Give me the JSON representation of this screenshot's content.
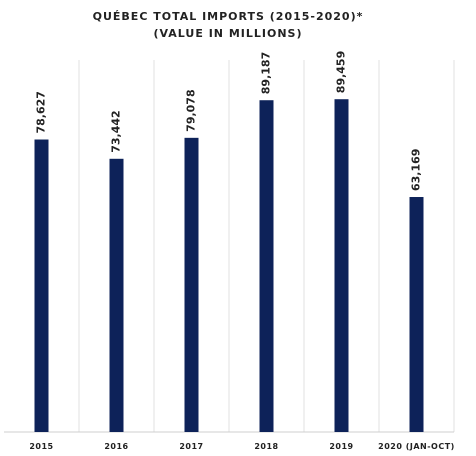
{
  "chart_data": {
    "type": "bar",
    "title": "QUÉBEC TOTAL IMPORTS (2015-2020)*",
    "subtitle": "(VALUE IN MILLIONS)",
    "categories": [
      "2015",
      "2016",
      "2017",
      "2018",
      "2019",
      "2020 (JAN-OCT)"
    ],
    "values": [
      78627,
      73442,
      79078,
      89187,
      89459,
      63169
    ],
    "value_labels": [
      "78,627",
      "73,442",
      "79,078",
      "89,187",
      "89,459",
      "63,169"
    ],
    "color": "#0d2259",
    "ylim": [
      0,
      100000
    ]
  }
}
